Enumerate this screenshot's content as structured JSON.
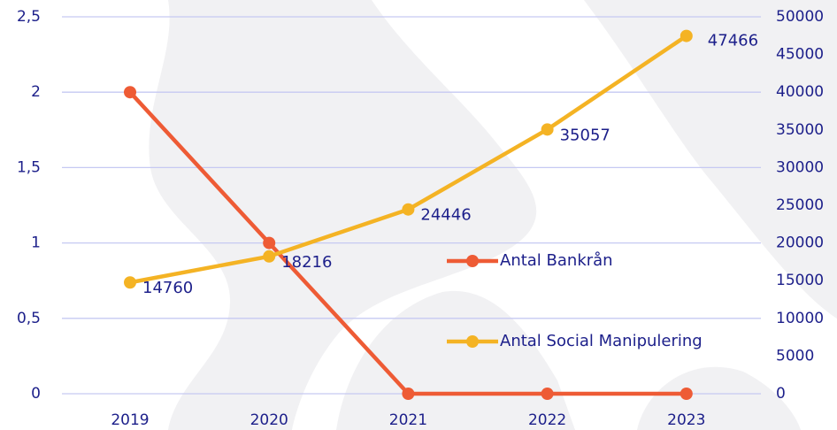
{
  "chart_data": {
    "type": "line",
    "categories": [
      "2019",
      "2020",
      "2021",
      "2022",
      "2023"
    ],
    "series": [
      {
        "name": "Antal Bankrån",
        "color": "#ee5b35",
        "values": [
          2,
          1,
          0,
          0,
          0
        ]
      },
      {
        "name": "Antal Social Manipulering",
        "color": "#f4b324",
        "axis": "y2",
        "values": [
          14760,
          18216,
          24446,
          35057,
          47466
        ]
      }
    ],
    "ylim": [
      0,
      2.5
    ],
    "yticks": [
      0,
      {
        "value": 0.5,
        "label": "0,5"
      },
      1,
      {
        "value": 1.5,
        "label": "1,5"
      },
      2,
      {
        "value": 2.5,
        "label": "2,5"
      }
    ],
    "y2lim": [
      0,
      50000
    ],
    "y2ticks": [
      0,
      5000,
      10000,
      15000,
      20000,
      25000,
      30000,
      35000,
      40000,
      45000,
      50000
    ],
    "grid": true,
    "legend": "right"
  }
}
